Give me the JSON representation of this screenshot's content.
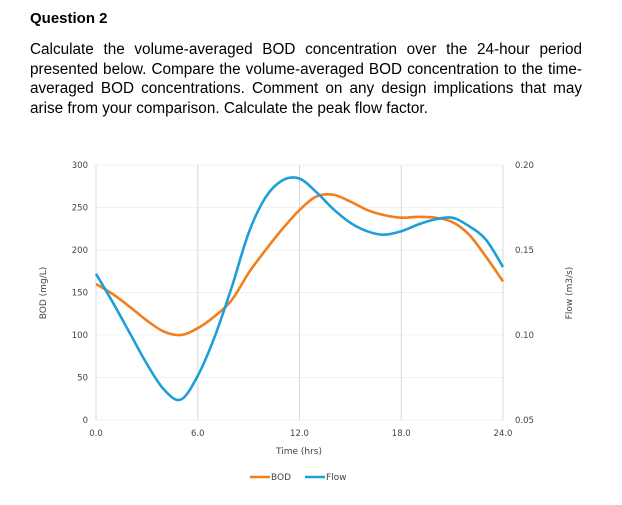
{
  "question": {
    "title": "Question 2",
    "body": "Calculate the volume-averaged BOD concentration over the 24-hour period presented below. Compare the volume-averaged BOD concentration to the time-averaged BOD concentrations. Comment on any design implications that may arise from your comparison. Calculate the peak flow factor."
  },
  "chart_data": {
    "type": "line",
    "xlabel": "Time (hrs)",
    "ylabel": "BOD (mg/L)",
    "y2label": "Flow (m3/s)",
    "xlim": [
      0,
      24
    ],
    "ylim": [
      0,
      300
    ],
    "y2lim": [
      0.05,
      0.2
    ],
    "x_ticks": [
      "0.0",
      "6.0",
      "12.0",
      "18.0",
      "24.0"
    ],
    "y_ticks": [
      "0",
      "50",
      "100",
      "150",
      "200",
      "250",
      "300"
    ],
    "y2_ticks": [
      "0.05",
      "0.10",
      "0.15",
      "0.20"
    ],
    "grid": true,
    "legend": "bottom",
    "x": [
      0,
      1,
      2,
      3,
      4,
      5,
      6,
      7,
      8,
      9,
      10,
      11,
      12,
      13,
      14,
      15,
      16,
      17,
      18,
      19,
      20,
      21,
      22,
      23,
      24
    ],
    "series": [
      {
        "name": "BOD",
        "axis": "left",
        "color": "#f07f1e",
        "values": [
          160,
          148,
          133,
          117,
          104,
          100,
          108,
          122,
          141,
          173,
          200,
          225,
          247,
          263,
          265,
          257,
          247,
          241,
          238,
          239,
          238,
          233,
          218,
          192,
          163
        ]
      },
      {
        "name": "Flow",
        "axis": "right",
        "color": "#1e9fd8",
        "values": [
          0.136,
          0.119,
          0.101,
          0.083,
          0.068,
          0.062,
          0.076,
          0.099,
          0.128,
          0.16,
          0.181,
          0.191,
          0.192,
          0.184,
          0.174,
          0.166,
          0.161,
          0.159,
          0.161,
          0.165,
          0.168,
          0.169,
          0.164,
          0.156,
          0.14
        ]
      }
    ]
  }
}
